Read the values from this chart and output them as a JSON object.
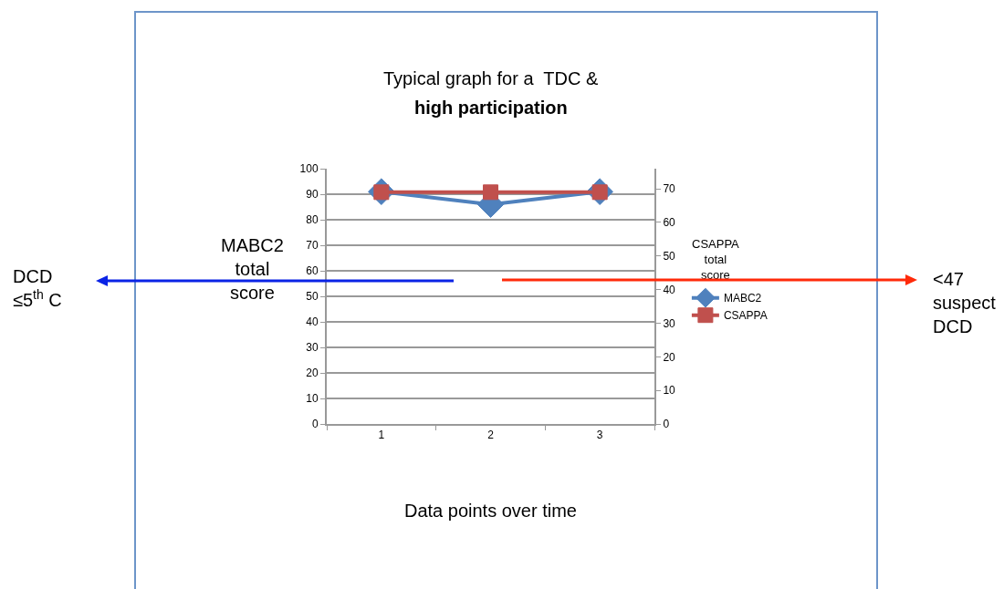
{
  "chart_data": {
    "type": "line",
    "title": "Typical graph for a  TDC &",
    "subtitle": "high participation",
    "xlabel": "Data points over time",
    "ylabel": "MABC2\ntotal\nscore",
    "y2label": "CSAPPA\ntotal\nscore",
    "categories": [
      "1",
      "2",
      "3"
    ],
    "series": [
      {
        "name": "MABC2",
        "color": "#4f81bd",
        "marker": "diamond",
        "values": [
          91,
          86,
          91
        ]
      },
      {
        "name": "CSAPPA",
        "color": "#c0504d",
        "marker": "square",
        "axis": "y2",
        "values": [
          69,
          69,
          69
        ]
      }
    ],
    "ylim": [
      0,
      100
    ],
    "yticks": [
      0,
      10,
      20,
      30,
      40,
      50,
      60,
      70,
      80,
      90,
      100
    ],
    "y2lim": [
      0,
      76
    ],
    "y2ticks": [
      0,
      10,
      20,
      30,
      40,
      50,
      60,
      70
    ],
    "ref_lines": [
      {
        "axis": "y",
        "value": 56,
        "label": "DCD\n≤5$^{th}$ C",
        "color": "#0a23e6"
      },
      {
        "axis": "y2",
        "value": 43,
        "label": "<47\nsuspect\nDCD",
        "color": "#ff2a0a"
      }
    ],
    "grid": "y",
    "legend": "right",
    "line_style": "solid"
  }
}
